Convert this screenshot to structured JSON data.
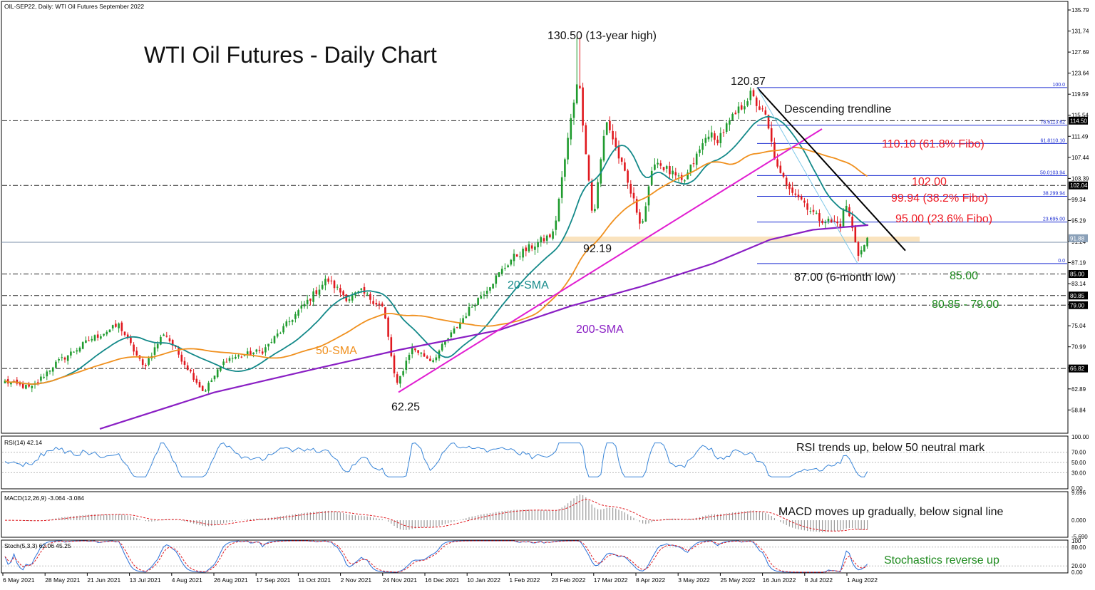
{
  "header": {
    "symbol_line": "OIL-SEP22, Daily:  WTI Oil Futures September 2022",
    "title": "WTI Oil Futures - Daily Chart"
  },
  "colors": {
    "bull": "#1f9b2e",
    "bear": "#e0191f",
    "sma20": "#138989",
    "sma50": "#f0901e",
    "sma200": "#8a1fc4",
    "trend_up": "#e11ed1",
    "trend_down": "#000000",
    "fib": "#1a2bd1",
    "red_label": "#ee1c25",
    "green_label": "#1e8a1e",
    "rsi": "#3a86d8",
    "macd_signal": "#e0191f",
    "macd_hist": "#9a9a9a",
    "stoch_main": "#2a6fd8",
    "stoch_signal": "#e0191f"
  },
  "chart_data": [
    {
      "type": "candlestick",
      "title": "WTI Oil Futures - Daily Chart",
      "ylim": [
        54.5,
        137.3
      ],
      "yticks": [
        "135.79",
        "131.74",
        "127.69",
        "123.64",
        "119.59",
        "115.54",
        "111.49",
        "107.44",
        "103.39",
        "99.34",
        "95.29",
        "91.24",
        "87.19",
        "83.14",
        "79.09",
        "75.04",
        "70.99",
        "66.94",
        "62.89",
        "58.84"
      ],
      "x_labels": [
        "6 May 2021",
        "28 May 2021",
        "21 Jun 2021",
        "13 Jul 2021",
        "4 Aug 2021",
        "26 Aug 2021",
        "17 Sep 2021",
        "11 Oct 2021",
        "2 Nov 2021",
        "24 Nov 2021",
        "16 Dec 2021",
        "10 Jan 2022",
        "1 Feb 2022",
        "23 Feb 2022",
        "17 Mar 2022",
        "8 Apr 2022",
        "3 May 2022",
        "25 May 2022",
        "16 Jun 2022",
        "8 Jul 2022",
        "1 Aug 2022"
      ],
      "price_path": [
        {
          "date": "2021-05-06",
          "price": 64.3
        },
        {
          "date": "2021-05-20",
          "price": 63.0
        },
        {
          "date": "2021-06-01",
          "price": 67.5
        },
        {
          "date": "2021-06-21",
          "price": 72.5
        },
        {
          "date": "2021-07-06",
          "price": 75.2
        },
        {
          "date": "2021-07-19",
          "price": 67.0
        },
        {
          "date": "2021-07-30",
          "price": 73.8
        },
        {
          "date": "2021-08-20",
          "price": 62.3
        },
        {
          "date": "2021-09-01",
          "price": 68.6
        },
        {
          "date": "2021-09-21",
          "price": 70.3
        },
        {
          "date": "2021-10-25",
          "price": 84.0
        },
        {
          "date": "2021-11-05",
          "price": 80.2
        },
        {
          "date": "2021-11-12",
          "price": 81.6
        },
        {
          "date": "2021-11-24",
          "price": 78.5
        },
        {
          "date": "2021-12-01",
          "price": 63.2
        },
        {
          "date": "2021-12-09",
          "price": 70.9
        },
        {
          "date": "2021-12-20",
          "price": 68.3
        },
        {
          "date": "2022-01-10",
          "price": 78.7
        },
        {
          "date": "2022-02-01",
          "price": 88.1
        },
        {
          "date": "2022-02-23",
          "price": 92.8
        },
        {
          "date": "2022-03-08",
          "price": 123.7
        },
        {
          "date": "2022-03-16",
          "price": 95.0
        },
        {
          "date": "2022-03-23",
          "price": 114.9
        },
        {
          "date": "2022-04-11",
          "price": 94.3
        },
        {
          "date": "2022-04-18",
          "price": 107.0
        },
        {
          "date": "2022-05-03",
          "price": 102.4
        },
        {
          "date": "2022-05-17",
          "price": 112.4
        },
        {
          "date": "2022-05-20",
          "price": 110.3
        },
        {
          "date": "2022-06-08",
          "price": 119.5
        },
        {
          "date": "2022-06-16",
          "price": 115.3
        },
        {
          "date": "2022-06-23",
          "price": 104.3
        },
        {
          "date": "2022-07-05",
          "price": 99.5
        },
        {
          "date": "2022-07-14",
          "price": 95.8
        },
        {
          "date": "2022-07-26",
          "price": 94.5
        },
        {
          "date": "2022-07-29",
          "price": 98.6
        },
        {
          "date": "2022-08-05",
          "price": 88.6
        },
        {
          "date": "2022-08-10",
          "price": 91.9
        }
      ],
      "annotations": [
        {
          "text": "130.50 (13-year high)",
          "date": "2022-03-08",
          "price": 130.5
        },
        {
          "text": "120.87",
          "date": "2022-06-08",
          "price": 120.87
        },
        {
          "text": "92.19",
          "date": "2022-03-16",
          "price": 92.19
        },
        {
          "text": "62.25",
          "date": "2021-12-01",
          "price": 62.25
        },
        {
          "text": "87.00 (6-month low)",
          "date": "2022-08-05",
          "price": 87.0
        },
        {
          "text": "Descending trendline"
        },
        {
          "text": "20-SMA"
        },
        {
          "text": "50-SMA"
        },
        {
          "text": "200-SMA"
        }
      ],
      "fibonacci": {
        "labels": [
          "100.0",
          "78.6113.62",
          "61.8110.10",
          "50.0103.94",
          "38.299.94",
          "23.695.00",
          "0.0"
        ],
        "levels": [
          120.87,
          113.62,
          110.1,
          103.94,
          99.94,
          95.0,
          87.0
        ]
      },
      "fib_callouts": [
        "110.10 (61.8% Fibo)",
        "102.00",
        "99.94 (38.2% Fibo)",
        "95.00 (23.6% Fibo)"
      ],
      "support_callouts": [
        "85.00",
        "80.85 - 79.00"
      ],
      "horizontal_levels": [
        114.5,
        102.04,
        85.0,
        80.85,
        79.0,
        66.82
      ],
      "price_tags": [
        "114.50",
        "102.04",
        "91.88",
        "85.00",
        "80.85",
        "79.00",
        "66.82"
      ],
      "last_price": 91.88
    },
    {
      "type": "line",
      "title": "RSI(14) 42.14",
      "ylim": [
        0,
        100
      ],
      "yticks": [
        "100.00",
        "70.00",
        "50.00",
        "30.00",
        "0.00"
      ],
      "annotation": "RSI trends up, below 50 neutral mark",
      "last_value": 42.14
    },
    {
      "type": "bar",
      "title": "MACD(12,26,9) -3.064 -3.084",
      "yticks": [
        "9.696",
        "0.000",
        "-5.690"
      ],
      "annotation": "MACD moves up gradually, below signal line",
      "last_values": [
        -3.064,
        -3.084
      ]
    },
    {
      "type": "line",
      "title": "Stoch(5,3,3) 62.06 45.25",
      "ylim": [
        0,
        100
      ],
      "yticks": [
        "100",
        "80.00",
        "20.00",
        "0.00"
      ],
      "annotation": "Stochastics reverse up",
      "last_values": [
        62.06,
        45.25
      ]
    }
  ]
}
